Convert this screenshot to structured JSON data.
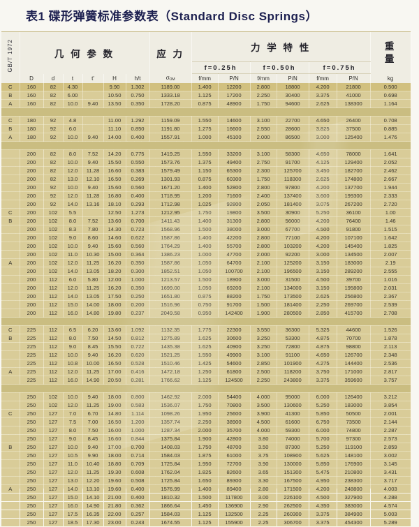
{
  "title": "表1 碟形弹簧标准参数表（Standard Disc Springs）",
  "table": {
    "standard_label": "GB/T 1972",
    "groups": {
      "geometry": "几 何 参 数",
      "stress": "应 力",
      "mechanical": "力 学 特 性",
      "weight_top": "重",
      "weight_bottom": "量"
    },
    "deflections": [
      "f=0.25h",
      "f=0.50h",
      "f=0.75h"
    ],
    "stress_symbol": "σ",
    "stress_subscript": "OM",
    "column_headers": [
      "D",
      "d",
      "t",
      "t'",
      "H",
      "h/t",
      "σOM",
      "f/mm",
      "P/N",
      "f/mm",
      "P/N",
      "f/mm",
      "P/N",
      "kg"
    ],
    "rows": [
      {
        "hl": true,
        "g": "C",
        "c": [
          "160",
          "82",
          "4.30",
          "",
          "9.90",
          "1.302",
          "1189.00",
          "1.400",
          "12200",
          "2.800",
          "18800",
          "4.200",
          "21800",
          "0.500"
        ]
      },
      {
        "g": "B",
        "c": [
          "160",
          "82",
          "6.00",
          "",
          "10.50",
          "0.750",
          "1333.18",
          "1.125",
          "17200",
          "2.250",
          "30400",
          "3.375",
          "41000",
          "0.698"
        ]
      },
      {
        "g": "A",
        "c": [
          "160",
          "82",
          "10.0",
          "9.40",
          "13.50",
          "0.350",
          "1728.20",
          "0.875",
          "48900",
          "1.750",
          "94600",
          "2.625",
          "138300",
          "1.164"
        ]
      },
      {
        "sep": true
      },
      {
        "g": "C",
        "c": [
          "180",
          "92",
          "4.8",
          "",
          "11.00",
          "1.292",
          "1159.09",
          "1.550",
          "14600",
          "3.100",
          "22700",
          "4.650",
          "26400",
          "0.708"
        ]
      },
      {
        "g": "B",
        "c": [
          "180",
          "92",
          "6.0",
          "",
          "11.10",
          "0.850",
          "1191.80",
          "1.275",
          "16600",
          "2.550",
          "28600",
          "3.825",
          "37500",
          "0.885"
        ]
      },
      {
        "g": "A",
        "c": [
          "180",
          "92",
          "10.0",
          "9.40",
          "14.00",
          "0.400",
          "1557.91",
          "1.000",
          "45100",
          "2.000",
          "86500",
          "3.000",
          "125400",
          "1.476"
        ]
      },
      {
        "sep": true
      },
      {
        "g": "",
        "c": [
          "200",
          "82",
          "8.0",
          "7.52",
          "14.20",
          "0.775",
          "1419.25",
          "1.550",
          "33200",
          "3.100",
          "58300",
          "4.650",
          "78000",
          "1.641"
        ]
      },
      {
        "g": "",
        "c": [
          "200",
          "82",
          "10.0",
          "9.40",
          "15.50",
          "0.550",
          "1573.76",
          "1.375",
          "49400",
          "2.750",
          "91700",
          "4.125",
          "129400",
          "2.052"
        ]
      },
      {
        "g": "",
        "c": [
          "200",
          "82",
          "12.0",
          "11.28",
          "16.60",
          "0.383",
          "1579.49",
          "1.150",
          "65300",
          "2.300",
          "125700",
          "3.450",
          "182700",
          "2.462"
        ]
      },
      {
        "g": "",
        "c": [
          "200",
          "82",
          "13.0",
          "12.10",
          "16.50",
          "0.269",
          "1301.93",
          "0.875",
          "60300",
          "1.750",
          "118300",
          "2.625",
          "174800",
          "2.667"
        ]
      },
      {
        "g": "",
        "c": [
          "200",
          "92",
          "10.0",
          "9.40",
          "15.60",
          "0.560",
          "1671.20",
          "1.400",
          "52800",
          "2.800",
          "97800",
          "4.200",
          "137700",
          "1.944"
        ]
      },
      {
        "g": "",
        "c": [
          "200",
          "92",
          "12.0",
          "11.28",
          "16.80",
          "0.400",
          "1718.95",
          "1.200",
          "71600",
          "2.400",
          "137400",
          "3.600",
          "199300",
          "2.333"
        ]
      },
      {
        "g": "",
        "c": [
          "200",
          "92",
          "14.0",
          "13.16",
          "18.10",
          "0.293",
          "1712.98",
          "1.025",
          "92800",
          "2.050",
          "181400",
          "3.075",
          "267200",
          "2.720"
        ]
      },
      {
        "g": "C",
        "c": [
          "200",
          "102",
          "5.5",
          "",
          "12.50",
          "1.273",
          "1212.95",
          "1.750",
          "19800",
          "3.500",
          "30900",
          "5.250",
          "36100",
          "1.00"
        ]
      },
      {
        "g": "B",
        "c": [
          "200",
          "102",
          "8.0",
          "7.52",
          "13.60",
          "0.700",
          "1411.43",
          "1.400",
          "31300",
          "2.800",
          "56000",
          "4.200",
          "76400",
          "1.46"
        ]
      },
      {
        "g": "",
        "c": [
          "200",
          "102",
          "8.3",
          "7.80",
          "14.30",
          "0.723",
          "1568.96",
          "1.500",
          "38000",
          "3.000",
          "67700",
          "4.500",
          "91800",
          "1.515"
        ]
      },
      {
        "g": "",
        "c": [
          "200",
          "102",
          "9.0",
          "8.60",
          "14.60",
          "0.622",
          "1587.86",
          "1.400",
          "42200",
          "2.800",
          "77100",
          "4.200",
          "107100",
          "1.642"
        ]
      },
      {
        "g": "",
        "c": [
          "200",
          "102",
          "10.0",
          "9.40",
          "15.60",
          "0.560",
          "1764.29",
          "1.400",
          "55700",
          "2.800",
          "103200",
          "4.200",
          "145400",
          "1.825"
        ]
      },
      {
        "g": "",
        "c": [
          "200",
          "102",
          "11.0",
          "10.30",
          "15.00",
          "0.364",
          "1386.23",
          "1.000",
          "47700",
          "2.000",
          "92200",
          "3.000",
          "134500",
          "2.007"
        ]
      },
      {
        "g": "A",
        "c": [
          "200",
          "102",
          "12.0",
          "11.25",
          "16.20",
          "0.350",
          "1587.86",
          "1.050",
          "64700",
          "2.100",
          "125200",
          "3.150",
          "183000",
          "2.19"
        ]
      },
      {
        "g": "",
        "c": [
          "200",
          "102",
          "14.0",
          "13.05",
          "18.20",
          "0.300",
          "1852.51",
          "1.050",
          "100700",
          "2.100",
          "196500",
          "3.150",
          "289200",
          "2.555"
        ]
      },
      {
        "g": "",
        "c": [
          "200",
          "112",
          "6.0",
          "5.80",
          "12.00",
          "1.000",
          "1213.57",
          "1.500",
          "18900",
          "3.000",
          "31500",
          "4.500",
          "39700",
          "1.016"
        ]
      },
      {
        "g": "",
        "c": [
          "200",
          "112",
          "12.0",
          "11.25",
          "16.20",
          "0.350",
          "1699.00",
          "1.050",
          "69200",
          "2.100",
          "134000",
          "3.150",
          "195800",
          "2.031"
        ]
      },
      {
        "g": "",
        "c": [
          "200",
          "112",
          "14.0",
          "13.05",
          "17.50",
          "0.250",
          "1651.80",
          "0.875",
          "88200",
          "1.750",
          "173500",
          "2.625",
          "256800",
          "2.367"
        ]
      },
      {
        "g": "",
        "c": [
          "200",
          "112",
          "15.0",
          "14.00",
          "18.00",
          "0.200",
          "1516.96",
          "0.750",
          "91700",
          "1.500",
          "181400",
          "2.250",
          "269700",
          "2.539"
        ]
      },
      {
        "g": "",
        "c": [
          "200",
          "112",
          "16.0",
          "14.80",
          "19.80",
          "0.237",
          "2049.58",
          "0.950",
          "142400",
          "1.900",
          "280500",
          "2.850",
          "415700",
          "2.708"
        ]
      },
      {
        "sep": true
      },
      {
        "g": "C",
        "c": [
          "225",
          "112",
          "6.5",
          "6.20",
          "13.60",
          "1.092",
          "1132.35",
          "1.775",
          "22300",
          "3.550",
          "36300",
          "5.325",
          "44600",
          "1.526"
        ]
      },
      {
        "g": "B",
        "c": [
          "225",
          "112",
          "8.0",
          "7.50",
          "14.50",
          "0.812",
          "1275.89",
          "1.625",
          "30600",
          "3.250",
          "53300",
          "4.875",
          "70700",
          "1.878"
        ]
      },
      {
        "g": "",
        "c": [
          "225",
          "112",
          "9.0",
          "8.45",
          "15.50",
          "0.722",
          "1435.38",
          "1.625",
          "40900",
          "3.250",
          "72800",
          "4.875",
          "98800",
          "2.113"
        ]
      },
      {
        "g": "",
        "c": [
          "225",
          "112",
          "10.0",
          "9.40",
          "16.20",
          "0.620",
          "1521.25",
          "1.550",
          "49900",
          "3.100",
          "91100",
          "4.650",
          "126700",
          "2.348"
        ]
      },
      {
        "g": "",
        "c": [
          "225",
          "112",
          "10.8",
          "10.00",
          "16.50",
          "0.528",
          "1510.46",
          "1.425",
          "54600",
          "2.850",
          "101900",
          "4.275",
          "144400",
          "2.536"
        ]
      },
      {
        "g": "A",
        "c": [
          "225",
          "112",
          "12.0",
          "11.25",
          "17.00",
          "0.416",
          "1472.18",
          "1.250",
          "61800",
          "2.500",
          "118200",
          "3.750",
          "171000",
          "2.817"
        ]
      },
      {
        "g": "",
        "c": [
          "225",
          "112",
          "16.0",
          "14.90",
          "20.50",
          "0.281",
          "1766.62",
          "1.125",
          "124500",
          "2.250",
          "243800",
          "3.375",
          "359600",
          "3.757"
        ]
      },
      {
        "sep": true
      },
      {
        "g": "",
        "c": [
          "250",
          "102",
          "10.0",
          "9.40",
          "18.00",
          "0.800",
          "1462.92",
          "2.000",
          "54400",
          "4.000",
          "95000",
          "6.000",
          "126400",
          "3.212"
        ]
      },
      {
        "g": "",
        "c": [
          "250",
          "102",
          "12.0",
          "11.25",
          "19.00",
          "0.583",
          "1536.07",
          "1.750",
          "70800",
          "3.500",
          "130600",
          "5.250",
          "183000",
          "3.854"
        ]
      },
      {
        "g": "C",
        "c": [
          "250",
          "127",
          "7.0",
          "6.70",
          "14.80",
          "1.114",
          "1098.26",
          "1.950",
          "25600",
          "3.900",
          "41300",
          "5.850",
          "50500",
          "2.001"
        ]
      },
      {
        "g": "",
        "c": [
          "250",
          "127",
          "7.5",
          "7.00",
          "16.50",
          "1.200",
          "1357.74",
          "2.250",
          "38900",
          "4.500",
          "61600",
          "6.750",
          "73500",
          "2.144"
        ]
      },
      {
        "g": "",
        "c": [
          "250",
          "127",
          "8.0",
          "7.50",
          "16.00",
          "1.000",
          "1287.34",
          "2.000",
          "35700",
          "4.000",
          "59300",
          "6.000",
          "74800",
          "2.287"
        ]
      },
      {
        "g": "",
        "c": [
          "250",
          "127",
          "9.0",
          "8.45",
          "16.60",
          "0.844",
          "1375.84",
          "1.900",
          "42800",
          "3.80",
          "74000",
          "5.700",
          "97300",
          "2.573"
        ]
      },
      {
        "g": "B",
        "c": [
          "250",
          "127",
          "10.0",
          "9.40",
          "17.00",
          "0.700",
          "1408.03",
          "1.750",
          "48700",
          "3.50",
          "87300",
          "5.250",
          "119100",
          "2.859"
        ]
      },
      {
        "g": "",
        "c": [
          "250",
          "127",
          "10.5",
          "9.90",
          "18.00",
          "0.714",
          "1584.03",
          "1.875",
          "61000",
          "3.75",
          "108900",
          "5.625",
          "148100",
          "3.002"
        ]
      },
      {
        "g": "",
        "c": [
          "250",
          "127",
          "11.0",
          "10.40",
          "18.80",
          "0.709",
          "1725.84",
          "1.950",
          "72700",
          "3.90",
          "130000",
          "5.850",
          "176900",
          "3.145"
        ]
      },
      {
        "g": "",
        "c": [
          "250",
          "127",
          "12.0",
          "11.25",
          "19.30",
          "0.608",
          "1762.04",
          "1.825",
          "82600",
          "3.65",
          "151300",
          "5.475",
          "210800",
          "3.431"
        ]
      },
      {
        "g": "",
        "c": [
          "250",
          "127",
          "13.0",
          "12.20",
          "19.60",
          "0.508",
          "1725.84",
          "1.650",
          "89300",
          "3.30",
          "167500",
          "4.950",
          "238300",
          "3.717"
        ]
      },
      {
        "g": "A",
        "c": [
          "250",
          "127",
          "14.0",
          "13.10",
          "19.60",
          "0.400",
          "1576.99",
          "1.400",
          "89400",
          "2.80",
          "171500",
          "4.200",
          "248800",
          "4.003"
        ]
      },
      {
        "g": "",
        "c": [
          "250",
          "127",
          "15.0",
          "14.10",
          "21.00",
          "0.400",
          "1810.32",
          "1.500",
          "117800",
          "3.00",
          "226100",
          "4.500",
          "327900",
          "4.288"
        ]
      },
      {
        "g": "",
        "c": [
          "250",
          "127",
          "16.0",
          "14.90",
          "21.80",
          "0.362",
          "1866.64",
          "1.450",
          "136900",
          "2.90",
          "262500",
          "4.350",
          "383000",
          "4.574"
        ]
      },
      {
        "g": "",
        "c": [
          "250",
          "127",
          "17.5",
          "16.35",
          "22.00",
          "0.257",
          "1584.03",
          "1.125",
          "132500",
          "2.25",
          "260300",
          "3.375",
          "384900",
          "5.003"
        ]
      },
      {
        "g": "",
        "c": [
          "250",
          "127",
          "18.5",
          "17.30",
          "23.00",
          "0.243",
          "1674.55",
          "1.125",
          "155900",
          "2.25",
          "306700",
          "3.375",
          "454300",
          "5.289"
        ]
      }
    ]
  }
}
